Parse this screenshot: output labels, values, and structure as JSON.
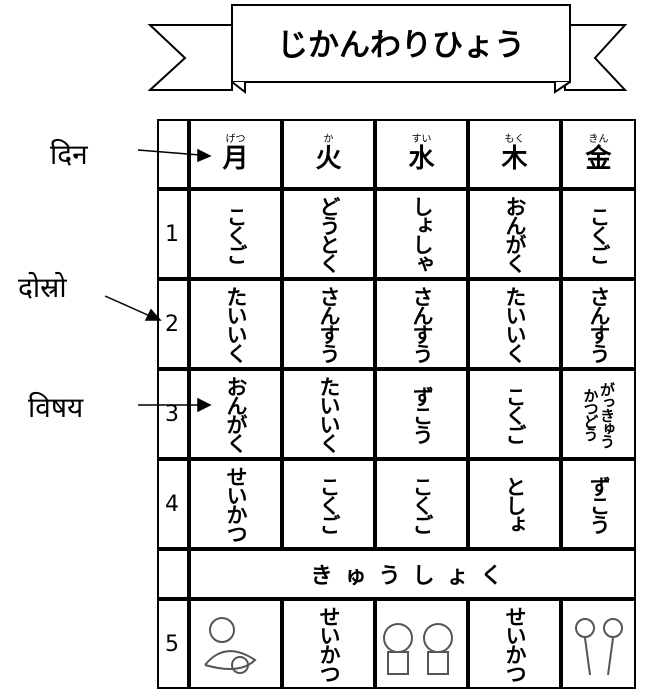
{
  "title": "じかんわりひょう",
  "annotations": [
    "दिन",
    "दोस्रो",
    "विषय"
  ],
  "table": {
    "days": [
      {
        "ruby": "げつ",
        "kanji": "月"
      },
      {
        "ruby": "か",
        "kanji": "火"
      },
      {
        "ruby": "すい",
        "kanji": "水"
      },
      {
        "ruby": "もく",
        "kanji": "木"
      },
      {
        "ruby": "きん",
        "kanji": "金"
      }
    ],
    "periods": [
      "1",
      "2",
      "3",
      "4"
    ],
    "rows": [
      [
        "こくご",
        "どうとく",
        "しょしゃ",
        "おんがく",
        "こくご"
      ],
      [
        "たいいく",
        "さんすう",
        "さんすう",
        "たいいく",
        "さんすう"
      ],
      [
        "おんがく",
        "たいいく",
        "ずこう",
        "こくご",
        [
          "がっきゅう",
          "かつどう"
        ]
      ],
      [
        "せいかつ",
        "こくご",
        "こくご",
        "としょ",
        "ずこう"
      ]
    ],
    "lunch": "きゅうしょく",
    "last": {
      "period": "5",
      "cells": {
        "1": "せいかつ",
        "3": "せいかつ"
      }
    }
  }
}
